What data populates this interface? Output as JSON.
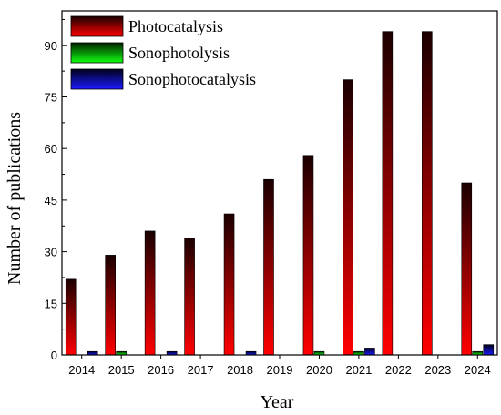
{
  "chart_data": {
    "type": "bar",
    "title": "",
    "xlabel": "Year",
    "ylabel": "Number of publications",
    "categories": [
      "2014",
      "2015",
      "2016",
      "2017",
      "2018",
      "2019",
      "2020",
      "2021",
      "2022",
      "2023",
      "2024"
    ],
    "series": [
      {
        "name": "Photocatalysis",
        "values": [
          22,
          29,
          36,
          34,
          41,
          51,
          58,
          80,
          94,
          94,
          50
        ]
      },
      {
        "name": "Sonophotolysis",
        "values": [
          0,
          1,
          0,
          0,
          0,
          0,
          1,
          1,
          0,
          0,
          1
        ]
      },
      {
        "name": "Sonophotocatalysis",
        "values": [
          1,
          0,
          1,
          0,
          1,
          0,
          0,
          2,
          0,
          0,
          3
        ]
      }
    ],
    "ylim": [
      0,
      100
    ],
    "yticks": [
      0,
      15,
      30,
      45,
      60,
      75,
      90
    ],
    "grid": false,
    "legend_position": "top-left",
    "colors": {
      "Photocatalysis": {
        "top": "#1a0000",
        "bottom": "#ff0000"
      },
      "Sonophotolysis": {
        "top": "#002200",
        "bottom": "#11ff11"
      },
      "Sonophotocatalysis": {
        "top": "#00001a",
        "bottom": "#1a1aff"
      }
    }
  }
}
